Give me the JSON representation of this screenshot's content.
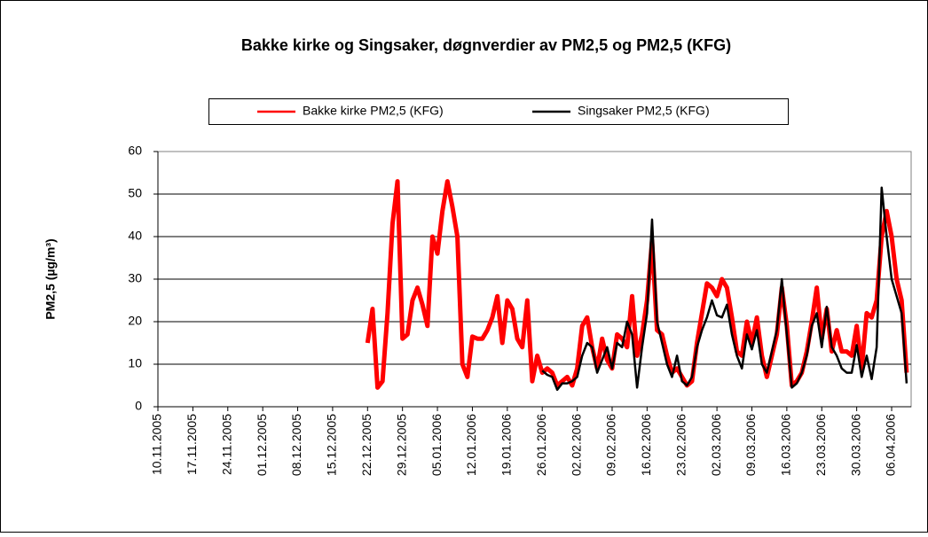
{
  "chart_data": {
    "type": "line",
    "title": "Bakke kirke og Singsaker, døgnverdier av PM2,5 og PM2,5 (KFG)",
    "y_label": "PM2,5 (µg/m³)",
    "categories": [
      "10.11.2005",
      null,
      null,
      null,
      null,
      null,
      null,
      "17.11.2005",
      null,
      null,
      null,
      null,
      null,
      null,
      "24.11.2005",
      null,
      null,
      null,
      null,
      null,
      null,
      "01.12.2005",
      null,
      null,
      null,
      null,
      null,
      null,
      "08.12.2005",
      null,
      null,
      null,
      null,
      null,
      null,
      "15.12.2005",
      null,
      null,
      null,
      null,
      null,
      null,
      "22.12.2005",
      null,
      null,
      null,
      null,
      null,
      null,
      "29.12.2005",
      null,
      null,
      null,
      null,
      null,
      null,
      "05.01.2006",
      null,
      null,
      null,
      null,
      null,
      null,
      "12.01.2006",
      null,
      null,
      null,
      null,
      null,
      null,
      "19.01.2006",
      null,
      null,
      null,
      null,
      null,
      null,
      "26.01.2006",
      null,
      null,
      null,
      null,
      null,
      null,
      "02.02.2006",
      null,
      null,
      null,
      null,
      null,
      null,
      "09.02.2006",
      null,
      null,
      null,
      null,
      null,
      null,
      "16.02.2006",
      null,
      null,
      null,
      null,
      null,
      null,
      "23.02.2006",
      null,
      null,
      null,
      null,
      null,
      null,
      "02.03.2006",
      null,
      null,
      null,
      null,
      null,
      null,
      "09.03.2006",
      null,
      null,
      null,
      null,
      null,
      null,
      "16.03.2006",
      null,
      null,
      null,
      null,
      null,
      null,
      "23.03.2006",
      null,
      null,
      null,
      null,
      null,
      null,
      "30.03.2006",
      null,
      null,
      null,
      null,
      null,
      null,
      "06.04.2006",
      null,
      null,
      null
    ],
    "series": [
      {
        "name": "Bakke kirke PM2,5 (KFG)",
        "color": "#ff0000",
        "values": [
          null,
          null,
          null,
          null,
          null,
          null,
          null,
          null,
          null,
          null,
          null,
          null,
          null,
          null,
          null,
          null,
          null,
          null,
          null,
          null,
          null,
          null,
          null,
          null,
          null,
          null,
          null,
          null,
          null,
          null,
          null,
          null,
          null,
          null,
          null,
          null,
          null,
          null,
          null,
          null,
          null,
          null,
          15,
          23,
          4.5,
          6,
          22,
          43,
          53,
          16,
          17,
          25,
          28,
          24,
          19,
          40,
          36,
          46,
          53,
          47,
          40,
          10,
          7,
          16.5,
          16,
          16,
          18,
          21,
          26,
          15,
          25,
          23,
          16,
          14,
          25,
          6,
          12,
          8,
          9,
          8,
          5,
          6,
          7,
          5,
          9,
          19,
          21,
          14,
          9,
          16,
          11,
          9,
          17,
          16,
          14,
          26,
          12,
          17,
          25,
          39,
          18,
          17,
          12,
          8,
          9,
          7,
          5,
          6,
          15,
          22,
          29,
          28,
          26,
          30,
          28,
          21,
          13,
          12,
          20,
          15,
          21,
          12,
          7,
          12,
          17,
          28,
          19,
          5,
          6,
          8,
          13,
          20,
          28,
          16,
          23,
          13,
          18,
          13,
          13,
          12,
          19,
          9,
          22,
          21,
          25,
          40,
          46,
          40,
          30,
          25,
          8
        ]
      },
      {
        "name": "Singsaker PM2,5 (KFG)",
        "color": "#000000",
        "values": [
          null,
          null,
          null,
          null,
          null,
          null,
          null,
          null,
          null,
          null,
          null,
          null,
          null,
          null,
          null,
          null,
          null,
          null,
          null,
          null,
          null,
          null,
          null,
          null,
          null,
          null,
          null,
          null,
          null,
          null,
          null,
          null,
          null,
          null,
          null,
          null,
          null,
          null,
          null,
          null,
          null,
          null,
          null,
          null,
          null,
          null,
          null,
          null,
          null,
          null,
          null,
          null,
          null,
          null,
          null,
          null,
          null,
          null,
          null,
          null,
          null,
          null,
          null,
          null,
          null,
          null,
          null,
          null,
          null,
          null,
          null,
          null,
          null,
          null,
          null,
          null,
          null,
          8.5,
          7.5,
          7,
          4,
          5.5,
          5.5,
          6,
          7,
          12,
          15,
          14,
          8,
          11,
          14,
          9,
          15,
          14,
          20,
          17,
          4.5,
          14,
          22,
          44,
          20,
          15,
          10,
          7,
          12,
          6,
          5,
          7,
          14,
          18,
          21,
          25,
          21.5,
          21,
          24,
          17,
          12,
          9,
          17,
          13.5,
          18,
          10,
          8,
          13,
          18,
          30,
          17,
          4.5,
          5.5,
          8,
          12,
          19,
          22,
          14,
          23.5,
          14,
          12,
          9,
          8,
          8,
          14.5,
          7,
          12,
          6.5,
          14,
          51.5,
          40,
          30,
          26,
          22,
          5.5
        ]
      }
    ],
    "ylim": [
      0,
      60
    ],
    "yticks": [
      0,
      10,
      20,
      30,
      40,
      50,
      60
    ],
    "grid": true
  }
}
